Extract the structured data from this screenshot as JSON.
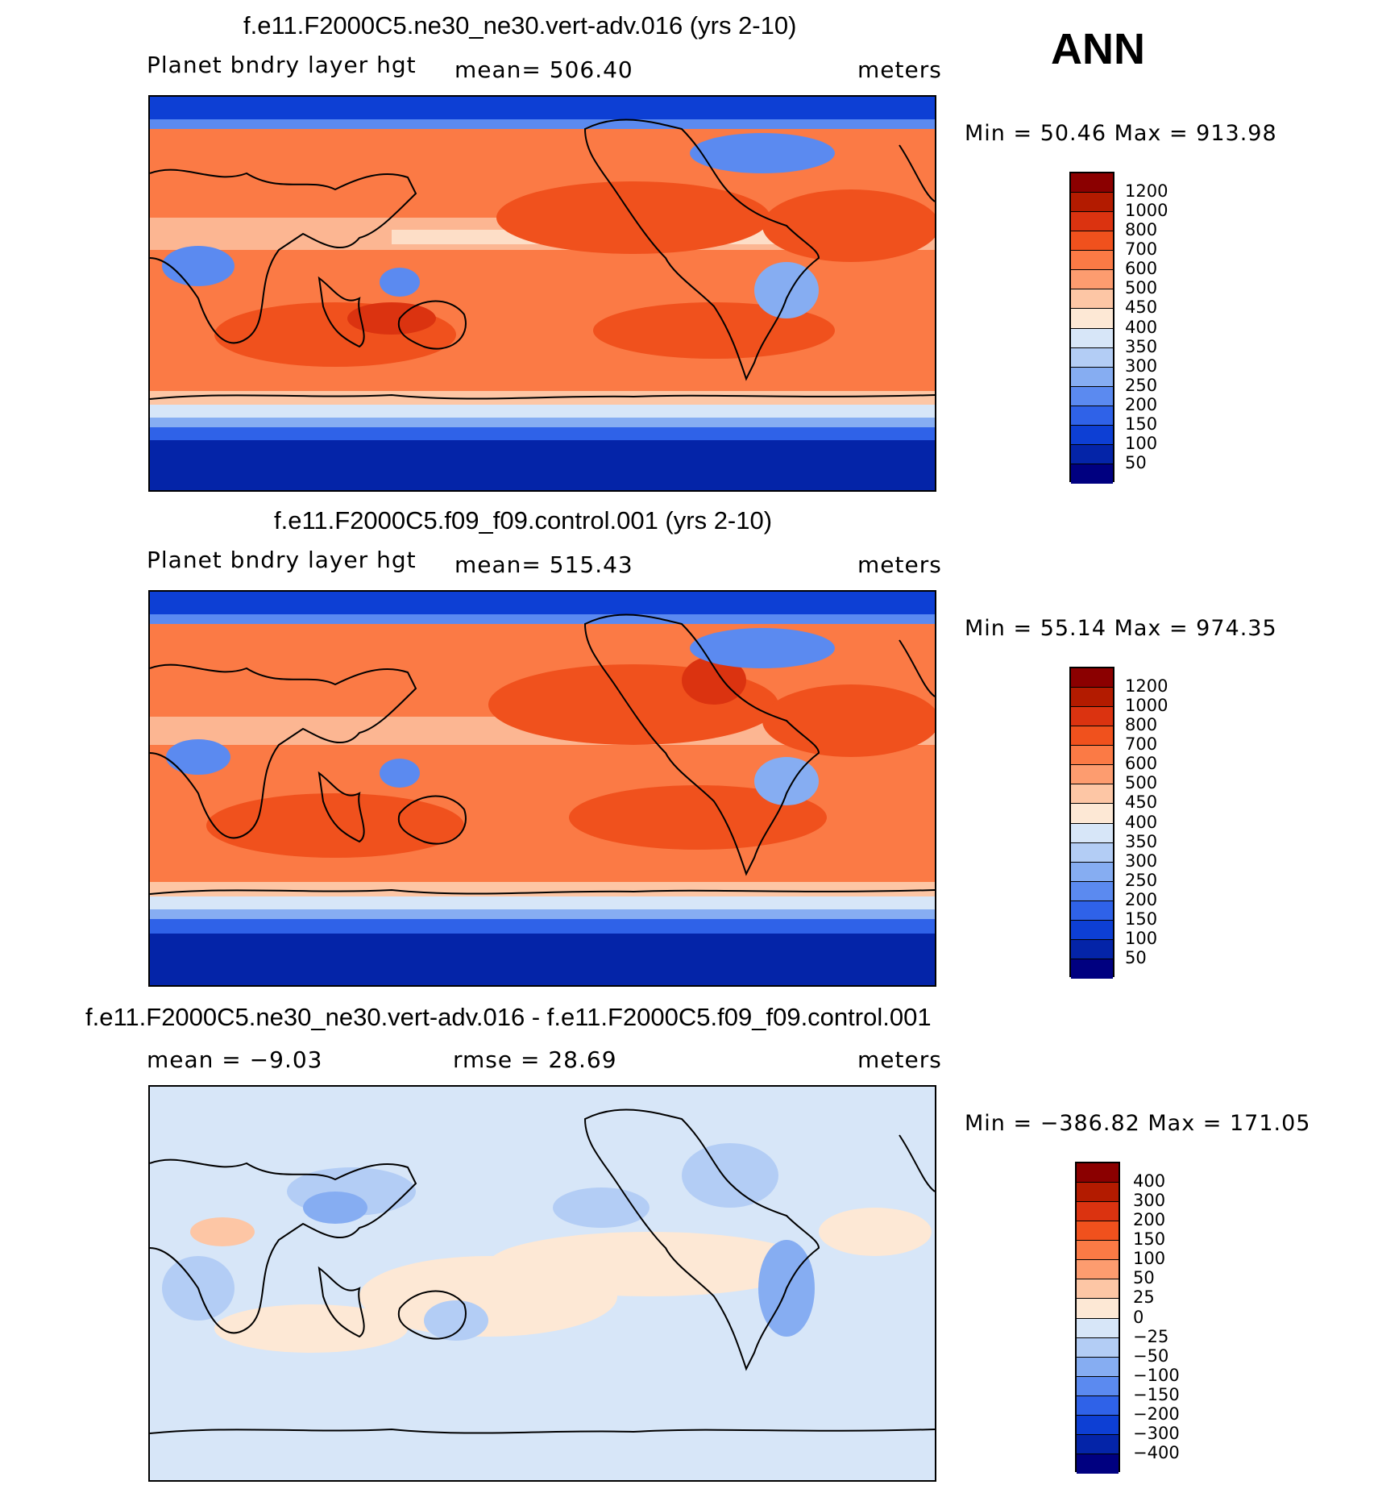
{
  "season": "ANN",
  "panels": [
    {
      "title": "f.e11.F2000C5.ne30_ne30.vert-adv.016 (yrs 2-10)",
      "variable": "Planet bndry layer hgt",
      "stat": "mean= 506.40",
      "units": "meters",
      "minmax": "Min =   50.46 Max = 913.98"
    },
    {
      "title": "f.e11.F2000C5.f09_f09.control.001 (yrs 2-10)",
      "variable": "Planet bndry layer hgt",
      "stat": "mean= 515.43",
      "units": "meters",
      "minmax": "Min =   55.14 Max = 974.35"
    },
    {
      "title": "f.e11.F2000C5.ne30_ne30.vert-adv.016 - f.e11.F2000C5.f09_f09.control.001",
      "variable": "mean =  −9.03",
      "stat": "rmse =   28.69",
      "units": "meters",
      "minmax": "Min = −386.82 Max = 171.05"
    }
  ],
  "colorbars": {
    "absolute": {
      "labels": [
        "1200",
        "1000",
        "800",
        "700",
        "600",
        "500",
        "450",
        "400",
        "350",
        "300",
        "250",
        "200",
        "150",
        "100",
        "50"
      ],
      "colors": [
        "#8b0000",
        "#b31b00",
        "#db3310",
        "#f0511d",
        "#fb7a45",
        "#fd9c6f",
        "#fdc6a5",
        "#fde8d5",
        "#d7e6f8",
        "#b3cdf5",
        "#86adf2",
        "#5b8af0",
        "#2f62e8",
        "#0d3fd4",
        "#0424a8",
        "#000080"
      ]
    },
    "difference": {
      "labels": [
        "400",
        "300",
        "200",
        "150",
        "100",
        "50",
        "25",
        "0",
        "−25",
        "−50",
        "−100",
        "−150",
        "−200",
        "−300",
        "−400"
      ],
      "colors": [
        "#8b0000",
        "#b31b00",
        "#db3310",
        "#f0511d",
        "#fb7a45",
        "#fd9c6f",
        "#fdc6a5",
        "#fde8d5",
        "#d7e6f8",
        "#b3cdf5",
        "#86adf2",
        "#5b8af0",
        "#2f62e8",
        "#0d3fd4",
        "#0424a8",
        "#000080"
      ]
    }
  }
}
